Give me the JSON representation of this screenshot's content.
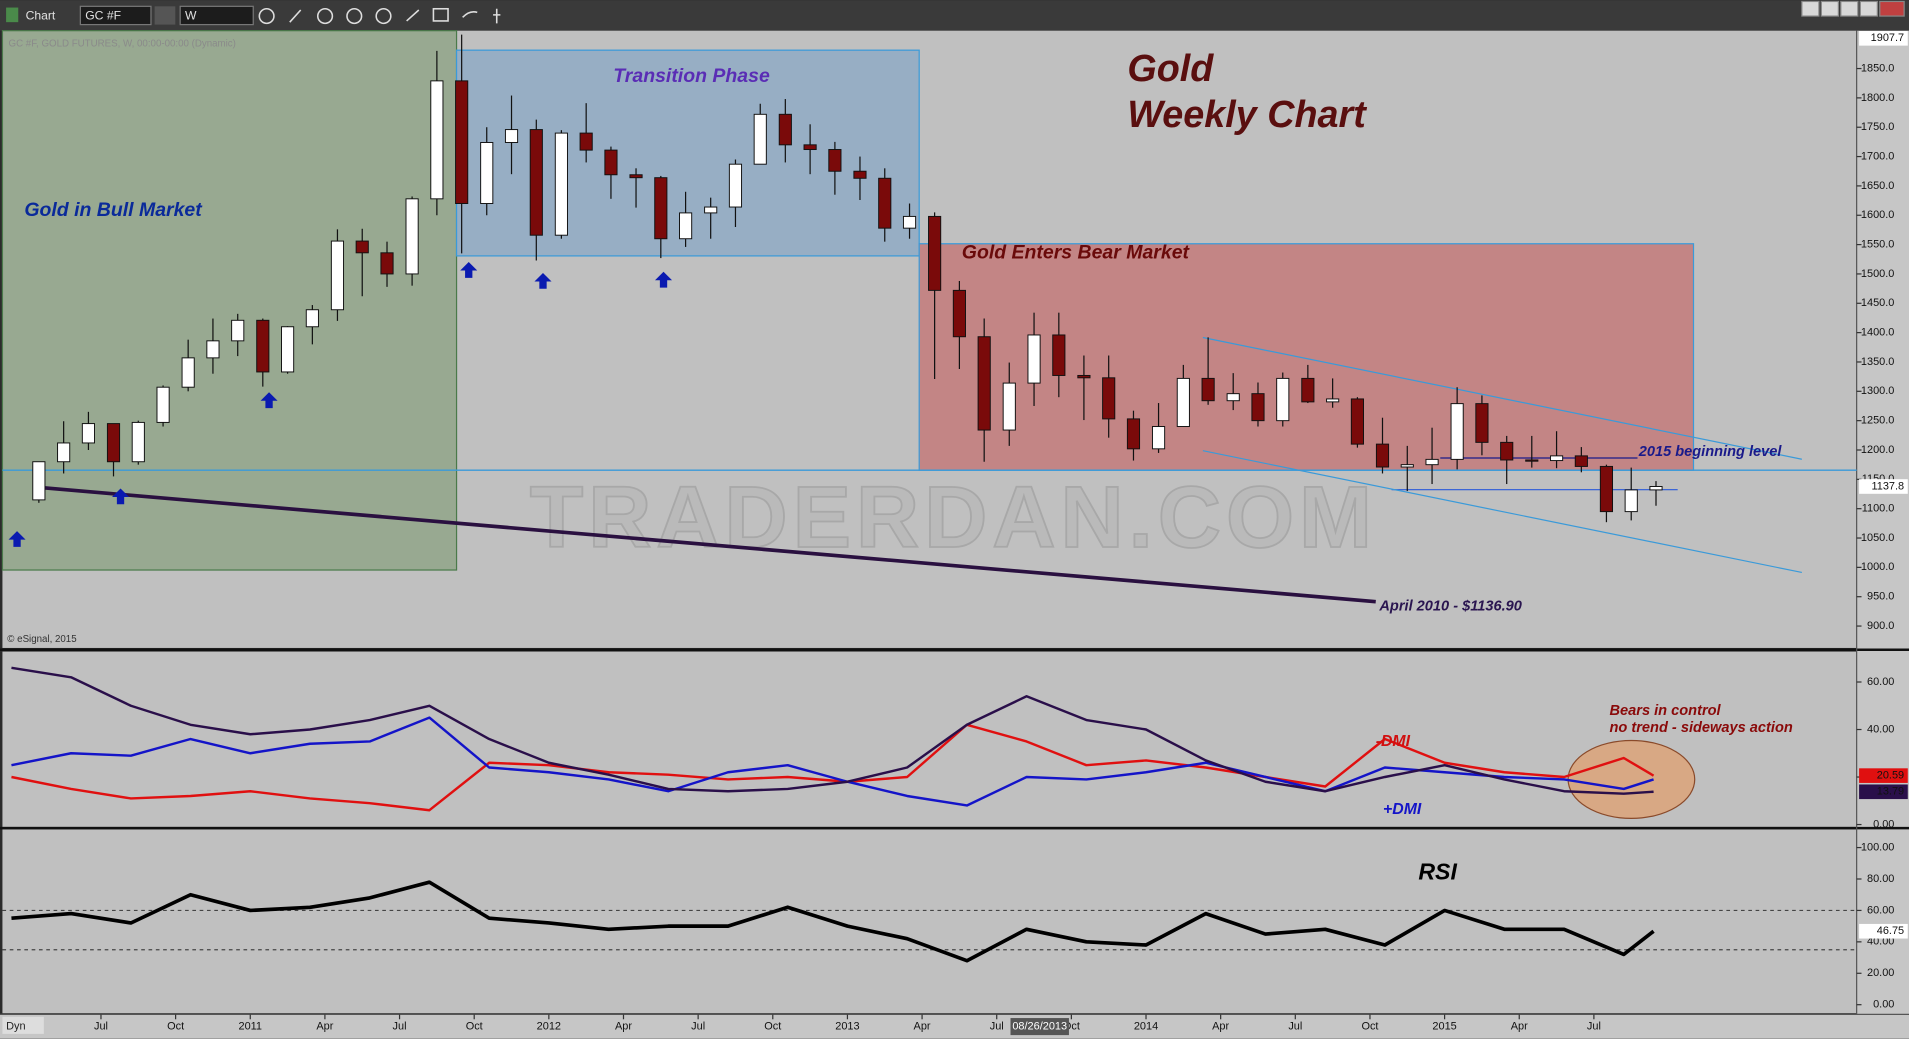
{
  "toolbar": {
    "title": "Chart",
    "symbol": "GC #F",
    "interval": "W",
    "status": "Dyn",
    "cursor_date": "08/26/2013"
  },
  "chart_data": [
    {
      "type": "candlestick",
      "title": "Gold",
      "subtitle": "Weekly Chart",
      "header": "GC #F, GOLD FUTURES, W, 00:00-00:00 (Dynamic)",
      "source": "© eSignal, 2015",
      "watermark": "TRADERDAN.COM",
      "annotations": [
        "Gold in Bull Market",
        "Transition Phase",
        "Gold Enters Bear Market",
        "2015 beginning level",
        "April 2010 - $1136.90"
      ],
      "x": [
        2010.292,
        2010.375,
        2010.458,
        2010.542,
        2010.625,
        2010.708,
        2010.792,
        2010.875,
        2010.958,
        2011.042,
        2011.125,
        2011.208,
        2011.292,
        2011.375,
        2011.458,
        2011.542,
        2011.625,
        2011.708,
        2011.792,
        2011.875,
        2011.958,
        2012.042,
        2012.125,
        2012.208,
        2012.292,
        2012.375,
        2012.458,
        2012.542,
        2012.625,
        2012.708,
        2012.792,
        2012.875,
        2012.958,
        2013.042,
        2013.125,
        2013.208,
        2013.292,
        2013.375,
        2013.458,
        2013.542,
        2013.625,
        2013.708,
        2013.792,
        2013.875,
        2013.958,
        2014.042,
        2014.125,
        2014.208,
        2014.292,
        2014.375,
        2014.458,
        2014.542,
        2014.625,
        2014.708,
        2014.792,
        2014.875,
        2014.958,
        2015.042,
        2015.125,
        2015.208,
        2015.292,
        2015.375,
        2015.458,
        2015.542,
        2015.625,
        2015.708
      ],
      "open": [
        1115,
        1180,
        1212,
        1245,
        1180,
        1247,
        1307,
        1357,
        1386,
        1421,
        1333,
        1410,
        1439,
        1556,
        1536,
        1500,
        1628,
        1829,
        1620,
        1724,
        1746,
        1566,
        1740,
        1711,
        1669,
        1664,
        1560,
        1604,
        1614,
        1687,
        1772,
        1720,
        1712,
        1675,
        1663,
        1578,
        1598,
        1472,
        1393,
        1234,
        1314,
        1396,
        1327,
        1323,
        1253,
        1202,
        1240,
        1322,
        1284,
        1296,
        1250,
        1322,
        1282,
        1287,
        1210,
        1171,
        1175,
        1184,
        1279,
        1213,
        1183,
        1182,
        1190,
        1172,
        1095,
        1132
      ],
      "high": [
        1180,
        1249,
        1265,
        1245,
        1250,
        1310,
        1388,
        1424,
        1432,
        1424,
        1411,
        1447,
        1576,
        1577,
        1555,
        1632,
        1880,
        1907.7,
        1750,
        1804,
        1763,
        1745,
        1791,
        1717,
        1680,
        1667,
        1640,
        1630,
        1695,
        1790,
        1798,
        1755,
        1725,
        1700,
        1680,
        1620,
        1605,
        1488,
        1424,
        1349,
        1434,
        1434,
        1361,
        1361,
        1267,
        1280,
        1345,
        1392,
        1331,
        1315,
        1332,
        1345,
        1322,
        1290,
        1255,
        1207,
        1238,
        1307,
        1293,
        1224,
        1224,
        1232,
        1205,
        1175,
        1170,
        1147
      ],
      "low": [
        1110,
        1160,
        1200,
        1155,
        1175,
        1240,
        1300,
        1330,
        1360,
        1308,
        1330,
        1380,
        1420,
        1462,
        1478,
        1480,
        1600,
        1535,
        1600,
        1670,
        1523,
        1560,
        1690,
        1628,
        1613,
        1527,
        1546,
        1560,
        1580,
        1690,
        1690,
        1670,
        1635,
        1626,
        1555,
        1560,
        1321,
        1338,
        1180,
        1207,
        1275,
        1290,
        1251,
        1221,
        1182,
        1195,
        1240,
        1277,
        1268,
        1240,
        1240,
        1280,
        1272,
        1204,
        1160,
        1130,
        1142,
        1167,
        1191,
        1142,
        1170,
        1169,
        1162,
        1077,
        1080,
        1105
      ],
      "close": [
        1180,
        1212,
        1245,
        1180,
        1247,
        1307,
        1357,
        1386,
        1421,
        1333,
        1410,
        1439,
        1556,
        1536,
        1500,
        1628,
        1829,
        1620,
        1724,
        1746,
        1566,
        1740,
        1711,
        1669,
        1664,
        1560,
        1604,
        1614,
        1687,
        1772,
        1720,
        1712,
        1675,
        1663,
        1578,
        1598,
        1472,
        1393,
        1234,
        1314,
        1396,
        1327,
        1323,
        1253,
        1202,
        1240,
        1322,
        1284,
        1296,
        1250,
        1322,
        1282,
        1287,
        1210,
        1171,
        1175,
        1184,
        1279,
        1213,
        1183,
        1182,
        1190,
        1172,
        1095,
        1132,
        1137.8
      ],
      "up_color": "#ffffff",
      "down_color": "#7a0a0a",
      "xlim": [
        2010.17,
        2016.38
      ],
      "xticks": [
        {
          "value": 2010.5,
          "label": "Jul"
        },
        {
          "value": 2010.75,
          "label": "Oct"
        },
        2011,
        {
          "value": 2011.25,
          "label": "Apr"
        },
        {
          "value": 2011.5,
          "label": "Jul"
        },
        {
          "value": 2011.75,
          "label": "Oct"
        },
        2012,
        {
          "value": 2012.25,
          "label": "Apr"
        },
        {
          "value": 2012.5,
          "label": "Jul"
        },
        {
          "value": 2012.75,
          "label": "Oct"
        },
        2013,
        {
          "value": 2013.25,
          "label": "Apr"
        },
        {
          "value": 2013.5,
          "label": "Jul"
        },
        {
          "value": 2013.75,
          "label": "Oct"
        },
        2014,
        {
          "value": 2014.25,
          "label": "Apr"
        },
        {
          "value": 2014.5,
          "label": "Jul"
        },
        {
          "value": 2014.75,
          "label": "Oct"
        },
        2015,
        {
          "value": 2015.25,
          "label": "Apr"
        },
        {
          "value": 2015.5,
          "label": "Jul"
        }
      ],
      "ylim": [
        862.7,
        1914.5
      ],
      "yticks": [
        {
          "value": 900,
          "label": "900.0"
        },
        {
          "value": 950,
          "label": "950.0"
        },
        {
          "value": 1000,
          "label": "1000.0"
        },
        {
          "value": 1050,
          "label": "1050.0"
        },
        {
          "value": 1100,
          "label": "1100.0"
        },
        {
          "value": 1150,
          "label": "1150.0"
        },
        {
          "value": 1200,
          "label": "1200.0"
        },
        {
          "value": 1250,
          "label": "1250.0"
        },
        {
          "value": 1300,
          "label": "1300.0"
        },
        {
          "value": 1350,
          "label": "1350.0"
        },
        {
          "value": 1400,
          "label": "1400.0"
        },
        {
          "value": 1450,
          "label": "1450.0"
        },
        {
          "value": 1500,
          "label": "1500.0"
        },
        {
          "value": 1550,
          "label": "1550.0"
        },
        {
          "value": 1600,
          "label": "1600.0"
        },
        {
          "value": 1650,
          "label": "1650.0"
        },
        {
          "value": 1700,
          "label": "1700.0"
        },
        {
          "value": 1750,
          "label": "1750.0"
        },
        {
          "value": 1800,
          "label": "1800.0"
        },
        {
          "value": 1850,
          "label": "1850.0"
        }
      ]
    },
    {
      "type": "line",
      "annotations": [
        "Bears in control",
        "no trend - sideways action"
      ],
      "x": [
        2010.2,
        2010.4,
        2010.6,
        2010.8,
        2011,
        2011.2,
        2011.4,
        2011.6,
        2011.8,
        2012,
        2012.2,
        2012.4,
        2012.6,
        2012.8,
        2013,
        2013.2,
        2013.4,
        2013.6,
        2013.8,
        2014,
        2014.2,
        2014.4,
        2014.6,
        2014.8,
        2015,
        2015.2,
        2015.4,
        2015.6,
        2015.7
      ],
      "series": [
        {
          "name": "-DMI",
          "color": "#e01010",
          "values": [
            20,
            15,
            11,
            12,
            14,
            11,
            9,
            6,
            26,
            25,
            22,
            21,
            19,
            20,
            18,
            20,
            42,
            35,
            25,
            27,
            24,
            20,
            16,
            36,
            26,
            22,
            20,
            28,
            20.59
          ]
        },
        {
          "name": "+DMI",
          "color": "#1414c8",
          "values": [
            25,
            30,
            29,
            36,
            30,
            34,
            35,
            45,
            24,
            22,
            19,
            14,
            22,
            25,
            18,
            12,
            8,
            20,
            19,
            22,
            26,
            20,
            14,
            24,
            22,
            20,
            19,
            15,
            19
          ]
        },
        {
          "color": "#2a0f4a",
          "values": [
            66,
            62,
            50,
            42,
            38,
            40,
            44,
            50,
            36,
            26,
            21,
            15,
            14,
            15,
            18,
            24,
            42,
            54,
            44,
            40,
            27,
            18,
            14,
            20,
            25,
            19,
            14,
            13,
            13.79
          ]
        }
      ],
      "ylim": [
        -1,
        72.8
      ],
      "yticks": [
        {
          "value": 0,
          "label": "0.00"
        },
        {
          "value": 20,
          "label": "20.00"
        },
        {
          "value": 40,
          "label": "40.00"
        },
        {
          "value": 60,
          "label": "60.00"
        }
      ]
    },
    {
      "type": "line",
      "title": "RSI",
      "x": [
        2010.2,
        2010.4,
        2010.6,
        2010.8,
        2011,
        2011.2,
        2011.4,
        2011.6,
        2011.8,
        2012,
        2012.2,
        2012.4,
        2012.6,
        2012.8,
        2013,
        2013.2,
        2013.4,
        2013.6,
        2013.8,
        2014,
        2014.2,
        2014.4,
        2014.6,
        2014.8,
        2015,
        2015.2,
        2015.4,
        2015.6,
        2015.7
      ],
      "series": [
        {
          "color": "#000000",
          "values": [
            55,
            58,
            52,
            70,
            60,
            62,
            68,
            78,
            55,
            52,
            48,
            50,
            50,
            62,
            50,
            42,
            28,
            48,
            40,
            38,
            58,
            45,
            48,
            38,
            60,
            48,
            48,
            32,
            46.75
          ]
        }
      ],
      "levels": [
        60,
        35
      ],
      "ylim": [
        -5.4,
        111.6
      ],
      "yticks": [
        {
          "value": 0,
          "label": "0.00"
        },
        {
          "value": 20,
          "label": "20.00"
        },
        {
          "value": 40,
          "label": "40.00"
        },
        {
          "value": 60,
          "label": "60.00"
        },
        {
          "value": 80,
          "label": "80.00"
        },
        {
          "value": 100,
          "label": "100.00"
        }
      ]
    }
  ]
}
